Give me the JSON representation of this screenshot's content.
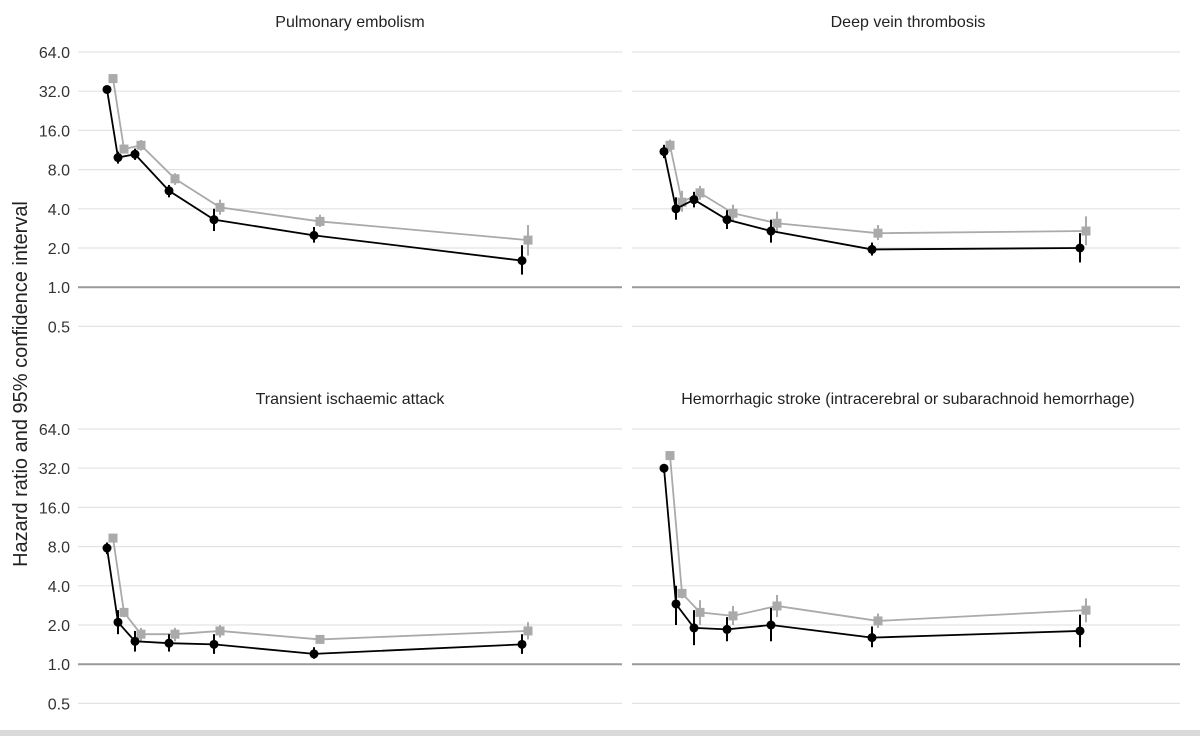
{
  "ylabel": "Hazard ratio and 95% confidence interval",
  "colors": {
    "series_a": "#000000",
    "series_b": "#aaaaaa",
    "grid": "#e3e3e3",
    "reference": "#999999",
    "text": "#222222"
  },
  "chart_data": [
    {
      "type": "line",
      "title": "Pulmonary embolism",
      "yscale": "log2",
      "yticks": [
        "64.0",
        "32.0",
        "16.0",
        "8.0",
        "4.0",
        "2.0",
        "1.0",
        "0.5"
      ],
      "ylim": [
        0.5,
        64
      ],
      "reference_line": 1.0,
      "series": [
        {
          "points": [
            {
              "y": 33.0,
              "lo": 33.0,
              "hi": 33.0
            },
            {
              "y": 9.9,
              "lo": 8.9,
              "hi": 11.0
            },
            {
              "y": 10.5,
              "lo": 9.5,
              "hi": 11.6
            },
            {
              "y": 5.5,
              "lo": 4.9,
              "hi": 6.1
            },
            {
              "y": 3.3,
              "lo": 2.7,
              "hi": 4.0
            },
            {
              "y": 2.5,
              "lo": 2.2,
              "hi": 2.9
            },
            {
              "y": 1.6,
              "lo": 1.25,
              "hi": 2.1
            }
          ]
        },
        {
          "points": [
            {
              "y": 40.0,
              "lo": 40.0,
              "hi": 40.0
            },
            {
              "y": 11.5,
              "lo": 11.0,
              "hi": 12.0
            },
            {
              "y": 12.3,
              "lo": 11.2,
              "hi": 13.5
            },
            {
              "y": 6.8,
              "lo": 6.1,
              "hi": 7.5
            },
            {
              "y": 4.1,
              "lo": 3.6,
              "hi": 4.7
            },
            {
              "y": 3.2,
              "lo": 2.9,
              "hi": 3.6
            },
            {
              "y": 2.3,
              "lo": 1.75,
              "hi": 3.0
            }
          ]
        }
      ]
    },
    {
      "type": "line",
      "title": "Deep vein thrombosis",
      "yscale": "log2",
      "yticks": [
        "64.0",
        "32.0",
        "16.0",
        "8.0",
        "4.0",
        "2.0",
        "1.0",
        "0.5"
      ],
      "ylim": [
        0.5,
        64
      ],
      "reference_line": 1.0,
      "series": [
        {
          "points": [
            {
              "y": 11.0,
              "lo": 9.8,
              "hi": 12.4
            },
            {
              "y": 4.0,
              "lo": 3.3,
              "hi": 4.9
            },
            {
              "y": 4.7,
              "lo": 4.1,
              "hi": 5.4
            },
            {
              "y": 3.3,
              "lo": 2.8,
              "hi": 3.9
            },
            {
              "y": 2.7,
              "lo": 2.2,
              "hi": 3.3
            },
            {
              "y": 1.95,
              "lo": 1.75,
              "hi": 2.2
            },
            {
              "y": 2.0,
              "lo": 1.55,
              "hi": 2.6
            }
          ]
        },
        {
          "points": [
            {
              "y": 12.3,
              "lo": 11.0,
              "hi": 13.6
            },
            {
              "y": 4.5,
              "lo": 3.8,
              "hi": 5.5
            },
            {
              "y": 5.3,
              "lo": 4.7,
              "hi": 6.0
            },
            {
              "y": 3.7,
              "lo": 3.2,
              "hi": 4.3
            },
            {
              "y": 3.1,
              "lo": 2.6,
              "hi": 3.8
            },
            {
              "y": 2.6,
              "lo": 2.3,
              "hi": 3.0
            },
            {
              "y": 2.7,
              "lo": 2.1,
              "hi": 3.5
            }
          ]
        }
      ]
    },
    {
      "type": "line",
      "title": "Transient ischaemic attack",
      "yscale": "log2",
      "yticks": [
        "64.0",
        "32.0",
        "16.0",
        "8.0",
        "4.0",
        "2.0",
        "1.0",
        "0.5"
      ],
      "ylim": [
        0.5,
        64
      ],
      "reference_line": 1.0,
      "series": [
        {
          "points": [
            {
              "y": 7.8,
              "lo": 7.0,
              "hi": 8.6
            },
            {
              "y": 2.1,
              "lo": 1.7,
              "hi": 2.6
            },
            {
              "y": 1.5,
              "lo": 1.25,
              "hi": 1.8
            },
            {
              "y": 1.45,
              "lo": 1.25,
              "hi": 1.7
            },
            {
              "y": 1.42,
              "lo": 1.2,
              "hi": 1.7
            },
            {
              "y": 1.2,
              "lo": 1.1,
              "hi": 1.35
            },
            {
              "y": 1.42,
              "lo": 1.2,
              "hi": 1.7
            }
          ]
        },
        {
          "points": [
            {
              "y": 9.3,
              "lo": 9.3,
              "hi": 9.3
            },
            {
              "y": 2.5,
              "lo": 2.3,
              "hi": 2.7
            },
            {
              "y": 1.7,
              "lo": 1.5,
              "hi": 1.9
            },
            {
              "y": 1.7,
              "lo": 1.5,
              "hi": 1.9
            },
            {
              "y": 1.8,
              "lo": 1.6,
              "hi": 2.0
            },
            {
              "y": 1.55,
              "lo": 1.45,
              "hi": 1.65
            },
            {
              "y": 1.8,
              "lo": 1.55,
              "hi": 2.1
            }
          ]
        }
      ]
    },
    {
      "type": "line",
      "title": "Hemorrhagic stroke (intracerebral or subarachnoid hemorrhage)",
      "yscale": "log2",
      "yticks": [
        "64.0",
        "32.0",
        "16.0",
        "8.0",
        "4.0",
        "2.0",
        "1.0",
        "0.5"
      ],
      "ylim": [
        0.5,
        64
      ],
      "reference_line": 1.0,
      "series": [
        {
          "points": [
            {
              "y": 32.0,
              "lo": 29.5,
              "hi": 34.5
            },
            {
              "y": 2.9,
              "lo": 2.0,
              "hi": 4.0
            },
            {
              "y": 1.9,
              "lo": 1.4,
              "hi": 2.6
            },
            {
              "y": 1.85,
              "lo": 1.5,
              "hi": 2.3
            },
            {
              "y": 2.0,
              "lo": 1.5,
              "hi": 2.7
            },
            {
              "y": 1.6,
              "lo": 1.35,
              "hi": 1.95
            },
            {
              "y": 1.8,
              "lo": 1.35,
              "hi": 2.4
            }
          ]
        },
        {
          "points": [
            {
              "y": 40.0,
              "lo": 40.0,
              "hi": 40.0
            },
            {
              "y": 3.5,
              "lo": 3.2,
              "hi": 3.8
            },
            {
              "y": 2.5,
              "lo": 2.0,
              "hi": 3.1
            },
            {
              "y": 2.35,
              "lo": 2.0,
              "hi": 2.8
            },
            {
              "y": 2.8,
              "lo": 2.3,
              "hi": 3.4
            },
            {
              "y": 2.15,
              "lo": 1.9,
              "hi": 2.45
            },
            {
              "y": 2.6,
              "lo": 2.1,
              "hi": 3.2
            }
          ]
        }
      ]
    }
  ]
}
